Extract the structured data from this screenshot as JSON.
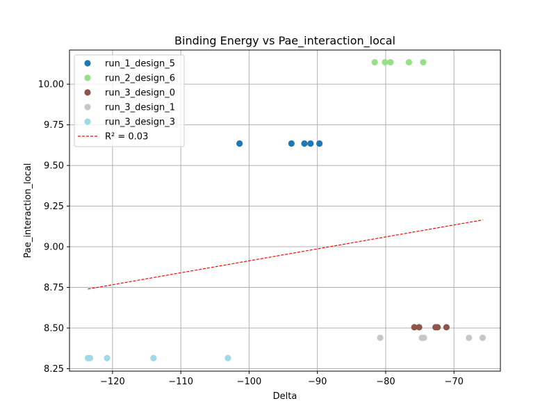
{
  "chart_data": {
    "type": "scatter",
    "title": "Binding Energy vs Pae_interaction_local",
    "xlabel": "Delta",
    "ylabel": "Pae_interaction_local",
    "xlim": [
      -126.3,
      -63.2
    ],
    "ylim": [
      8.235,
      10.21
    ],
    "xticks": [
      -120,
      -110,
      -100,
      -90,
      -80,
      -70
    ],
    "xtick_labels": [
      "−120",
      "−110",
      "−100",
      "−90",
      "−80",
      "−70"
    ],
    "yticks": [
      8.25,
      8.5,
      8.75,
      9.0,
      9.25,
      9.5,
      9.75,
      10.0
    ],
    "ytick_labels": [
      "8.25",
      "8.50",
      "8.75",
      "9.00",
      "9.25",
      "9.50",
      "9.75",
      "10.00"
    ],
    "grid": true,
    "legend_position": "top-left",
    "series": [
      {
        "name": "run_1_design_5",
        "color": "#1f77b4",
        "points": [
          [
            -101.4,
            9.635
          ],
          [
            -93.8,
            9.635
          ],
          [
            -91.9,
            9.635
          ],
          [
            -91.0,
            9.635
          ],
          [
            -89.7,
            9.635
          ]
        ]
      },
      {
        "name": "run_2_design_6",
        "color": "#98df8a",
        "points": [
          [
            -81.6,
            10.135
          ],
          [
            -80.1,
            10.135
          ],
          [
            -79.3,
            10.135
          ],
          [
            -76.6,
            10.135
          ],
          [
            -74.5,
            10.135
          ]
        ]
      },
      {
        "name": "run_3_design_0",
        "color": "#8c564b",
        "points": [
          [
            -75.8,
            8.505
          ],
          [
            -75.1,
            8.505
          ],
          [
            -72.7,
            8.505
          ],
          [
            -72.4,
            8.505
          ],
          [
            -71.1,
            8.505
          ]
        ]
      },
      {
        "name": "run_3_design_1",
        "color": "#c7c7c7",
        "points": [
          [
            -80.8,
            8.44
          ],
          [
            -74.7,
            8.44
          ],
          [
            -74.4,
            8.44
          ],
          [
            -67.8,
            8.44
          ],
          [
            -65.8,
            8.44
          ]
        ]
      },
      {
        "name": "run_3_design_3",
        "color": "#9edae5",
        "points": [
          [
            -123.6,
            8.315
          ],
          [
            -123.3,
            8.315
          ],
          [
            -120.8,
            8.315
          ],
          [
            -114.0,
            8.315
          ],
          [
            -103.1,
            8.315
          ]
        ]
      }
    ],
    "trendline": {
      "label": "R² = 0.03",
      "color": "#ff0000",
      "x": [
        -123.6,
        -65.8
      ],
      "y": [
        8.74,
        9.165
      ]
    }
  }
}
